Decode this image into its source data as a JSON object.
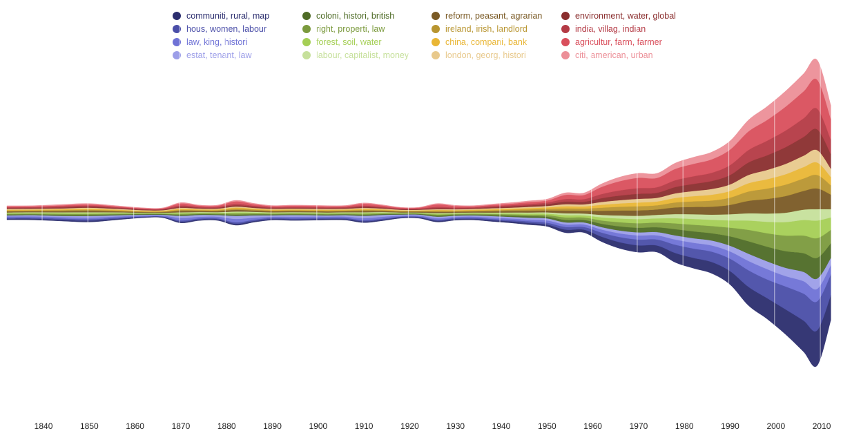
{
  "chart_data": {
    "type": "area",
    "subtype": "streamgraph",
    "title": "",
    "xlabel": "",
    "ylabel": "",
    "xlim": [
      1832,
      2013
    ],
    "x_ticks": [
      1840,
      1850,
      1860,
      1870,
      1880,
      1890,
      1900,
      1910,
      1920,
      1930,
      1940,
      1950,
      1960,
      1970,
      1980,
      1990,
      2000,
      2010
    ],
    "legend_position": "top",
    "x": [
      1832,
      1838,
      1844,
      1850,
      1856,
      1862,
      1866,
      1870,
      1874,
      1878,
      1882,
      1886,
      1890,
      1894,
      1898,
      1902,
      1906,
      1910,
      1914,
      1918,
      1922,
      1926,
      1930,
      1934,
      1938,
      1942,
      1946,
      1950,
      1954,
      1958,
      1962,
      1966,
      1970,
      1974,
      1978,
      1982,
      1986,
      1990,
      1994,
      1998,
      2002,
      2006,
      2009,
      2012
    ],
    "series": [
      {
        "name": "communiti, rural, map",
        "color": "#2b2d6e",
        "values": [
          0.5,
          0.6,
          0.6,
          0.7,
          0.5,
          0.3,
          0.3,
          0.6,
          0.5,
          0.5,
          0.7,
          0.6,
          0.5,
          0.5,
          0.5,
          0.5,
          0.5,
          0.6,
          0.5,
          0.4,
          0.4,
          0.6,
          0.5,
          0.5,
          0.6,
          0.7,
          0.8,
          0.9,
          1.5,
          1.4,
          2.4,
          3.0,
          3.3,
          3.2,
          4.5,
          5.0,
          5.5,
          6.5,
          9.0,
          10.0,
          12.0,
          15.0,
          17.0,
          12.0
        ]
      },
      {
        "name": "hous, women, labour",
        "color": "#4a4ea8",
        "values": [
          0.5,
          0.5,
          0.6,
          0.6,
          0.5,
          0.3,
          0.3,
          0.6,
          0.5,
          0.5,
          0.7,
          0.6,
          0.5,
          0.5,
          0.5,
          0.5,
          0.5,
          0.6,
          0.5,
          0.4,
          0.4,
          0.5,
          0.5,
          0.5,
          0.6,
          0.6,
          0.8,
          0.9,
          1.3,
          1.3,
          2.0,
          2.5,
          2.8,
          2.9,
          4.0,
          4.5,
          5.0,
          6.0,
          8.0,
          9.0,
          11.0,
          13.0,
          14.0,
          10.0
        ]
      },
      {
        "name": "law, king, histori",
        "color": "#6f72d6",
        "values": [
          0.6,
          0.6,
          0.7,
          0.8,
          0.6,
          0.4,
          0.4,
          1.2,
          0.8,
          0.8,
          1.6,
          1.0,
          0.6,
          0.8,
          0.8,
          0.6,
          0.7,
          1.0,
          0.9,
          0.5,
          0.5,
          0.7,
          0.6,
          0.6,
          0.7,
          0.8,
          0.9,
          1.1,
          1.2,
          1.2,
          1.5,
          1.8,
          2.0,
          2.0,
          2.5,
          2.8,
          3.0,
          3.5,
          4.5,
          5.0,
          5.0,
          6.0,
          6.0,
          4.5
        ]
      },
      {
        "name": "estat, tenant, law",
        "color": "#9c9ee8",
        "values": [
          0.5,
          0.6,
          0.6,
          0.8,
          0.6,
          0.4,
          0.4,
          1.0,
          0.9,
          0.8,
          1.5,
          1.1,
          0.7,
          0.8,
          0.7,
          0.6,
          0.7,
          1.1,
          0.9,
          0.5,
          0.5,
          0.8,
          0.6,
          0.6,
          0.7,
          0.8,
          0.9,
          1.0,
          1.0,
          1.0,
          1.2,
          1.4,
          1.5,
          1.6,
          2.0,
          2.2,
          2.4,
          2.8,
          3.5,
          3.8,
          4.0,
          4.5,
          5.0,
          3.5
        ]
      },
      {
        "name": "coloni, histori, british",
        "color": "#4e6b26",
        "values": [
          0.4,
          0.4,
          0.5,
          0.5,
          0.4,
          0.3,
          0.3,
          0.5,
          0.4,
          0.4,
          0.6,
          0.5,
          0.4,
          0.4,
          0.4,
          0.4,
          0.4,
          0.5,
          0.4,
          0.3,
          0.3,
          0.5,
          0.4,
          0.4,
          0.5,
          0.6,
          0.7,
          0.8,
          1.2,
          1.2,
          1.6,
          2.0,
          2.2,
          2.3,
          3.0,
          3.3,
          3.5,
          4.5,
          6.0,
          7.0,
          8.0,
          9.0,
          10.0,
          7.0
        ]
      },
      {
        "name": "right, properti, law",
        "color": "#7b9a3d",
        "values": [
          0.4,
          0.4,
          0.5,
          0.5,
          0.4,
          0.3,
          0.3,
          0.5,
          0.4,
          0.4,
          0.6,
          0.5,
          0.4,
          0.4,
          0.4,
          0.4,
          0.4,
          0.5,
          0.4,
          0.3,
          0.3,
          0.5,
          0.4,
          0.4,
          0.5,
          0.6,
          0.7,
          0.8,
          1.2,
          1.2,
          1.6,
          2.0,
          2.2,
          2.3,
          2.8,
          3.2,
          3.5,
          4.2,
          5.5,
          6.5,
          7.5,
          8.5,
          9.5,
          6.5
        ]
      },
      {
        "name": "forest, soil, water",
        "color": "#a5cf55",
        "values": [
          0.3,
          0.3,
          0.4,
          0.4,
          0.3,
          0.2,
          0.2,
          0.4,
          0.3,
          0.3,
          0.5,
          0.4,
          0.3,
          0.3,
          0.3,
          0.3,
          0.3,
          0.4,
          0.3,
          0.2,
          0.2,
          0.4,
          0.3,
          0.3,
          0.4,
          0.5,
          0.6,
          0.7,
          1.1,
          1.0,
          1.5,
          1.8,
          2.0,
          2.0,
          2.5,
          2.8,
          3.0,
          3.5,
          4.5,
          5.5,
          6.5,
          7.5,
          8.5,
          6.0
        ]
      },
      {
        "name": "labour, capitalist, money",
        "color": "#c6e09b",
        "values": [
          0.3,
          0.3,
          0.3,
          0.4,
          0.3,
          0.2,
          0.2,
          0.3,
          0.3,
          0.3,
          0.4,
          0.3,
          0.3,
          0.3,
          0.3,
          0.3,
          0.3,
          0.3,
          0.3,
          0.2,
          0.2,
          0.3,
          0.3,
          0.3,
          0.3,
          0.4,
          0.5,
          0.6,
          0.9,
          0.9,
          1.2,
          1.5,
          1.6,
          1.7,
          2.0,
          2.3,
          2.5,
          3.0,
          3.5,
          4.0,
          4.5,
          5.0,
          5.5,
          4.0
        ]
      },
      {
        "name": "reform, peasant, agrarian",
        "color": "#7a5a25",
        "values": [
          0.5,
          0.5,
          0.6,
          0.7,
          0.5,
          0.3,
          0.3,
          0.7,
          0.5,
          0.5,
          0.8,
          0.6,
          0.5,
          0.5,
          0.5,
          0.5,
          0.5,
          0.6,
          0.5,
          0.4,
          0.4,
          0.6,
          0.5,
          0.5,
          0.6,
          0.7,
          0.8,
          0.9,
          1.3,
          1.3,
          2.0,
          2.4,
          2.6,
          2.6,
          3.2,
          3.5,
          3.8,
          4.5,
          6.0,
          7.0,
          8.0,
          9.0,
          10.0,
          7.0
        ]
      },
      {
        "name": "ireland, irish, landlord",
        "color": "#b89530",
        "values": [
          0.4,
          0.4,
          0.5,
          0.5,
          0.4,
          0.3,
          0.3,
          0.5,
          0.4,
          0.4,
          0.6,
          0.5,
          0.4,
          0.4,
          0.4,
          0.4,
          0.4,
          0.5,
          0.4,
          0.3,
          0.3,
          0.5,
          0.4,
          0.4,
          0.5,
          0.6,
          0.7,
          0.8,
          1.1,
          1.1,
          1.5,
          1.8,
          2.0,
          2.0,
          2.4,
          2.7,
          3.0,
          3.5,
          4.5,
          5.0,
          5.5,
          6.0,
          6.5,
          4.5
        ]
      },
      {
        "name": "china, compani, bank",
        "color": "#e9b635",
        "values": [
          0.4,
          0.4,
          0.4,
          0.5,
          0.4,
          0.3,
          0.3,
          0.5,
          0.4,
          0.4,
          0.5,
          0.4,
          0.4,
          0.4,
          0.4,
          0.4,
          0.4,
          0.5,
          0.4,
          0.3,
          0.3,
          0.4,
          0.4,
          0.4,
          0.5,
          0.5,
          0.6,
          0.7,
          1.0,
          1.0,
          1.4,
          1.6,
          1.8,
          1.8,
          2.2,
          2.5,
          2.8,
          3.2,
          4.0,
          4.5,
          5.0,
          5.5,
          6.0,
          4.0
        ]
      },
      {
        "name": "london, georg, histori",
        "color": "#e8c98c",
        "values": [
          0.4,
          0.4,
          0.4,
          0.5,
          0.4,
          0.3,
          0.3,
          0.5,
          0.4,
          0.4,
          0.5,
          0.4,
          0.4,
          0.4,
          0.4,
          0.4,
          0.4,
          0.5,
          0.4,
          0.3,
          0.3,
          0.4,
          0.4,
          0.4,
          0.5,
          0.5,
          0.6,
          0.7,
          1.0,
          1.0,
          1.4,
          1.6,
          1.8,
          1.8,
          2.2,
          2.5,
          2.8,
          3.2,
          4.0,
          4.5,
          5.0,
          5.5,
          6.0,
          4.0
        ]
      },
      {
        "name": "environment, water, global",
        "color": "#8a2e2e",
        "values": [
          0.4,
          0.4,
          0.5,
          0.5,
          0.4,
          0.3,
          0.3,
          0.5,
          0.4,
          0.4,
          0.6,
          0.5,
          0.4,
          0.4,
          0.4,
          0.4,
          0.4,
          0.5,
          0.4,
          0.3,
          0.3,
          0.5,
          0.4,
          0.4,
          0.5,
          0.6,
          0.7,
          0.8,
          1.2,
          1.2,
          1.8,
          2.2,
          2.4,
          2.4,
          3.0,
          3.4,
          3.8,
          4.5,
          6.0,
          7.0,
          8.0,
          9.0,
          10.0,
          7.0
        ]
      },
      {
        "name": "india, villag, indian",
        "color": "#b43a45",
        "values": [
          0.4,
          0.4,
          0.5,
          0.5,
          0.4,
          0.3,
          0.3,
          0.6,
          0.4,
          0.4,
          0.7,
          0.5,
          0.4,
          0.4,
          0.4,
          0.4,
          0.4,
          0.6,
          0.4,
          0.3,
          0.3,
          0.6,
          0.4,
          0.4,
          0.5,
          0.6,
          0.7,
          0.8,
          1.3,
          1.3,
          2.0,
          2.5,
          2.7,
          2.7,
          3.3,
          3.7,
          4.0,
          4.8,
          6.0,
          7.0,
          8.0,
          9.0,
          10.0,
          7.0
        ]
      },
      {
        "name": "agricultur, farm, farmer",
        "color": "#d94f5c",
        "values": [
          0.4,
          0.4,
          0.5,
          0.6,
          0.4,
          0.3,
          0.3,
          1.0,
          0.6,
          0.6,
          1.2,
          0.8,
          0.5,
          0.6,
          0.6,
          0.5,
          0.5,
          0.9,
          0.7,
          0.4,
          0.4,
          1.2,
          0.8,
          0.5,
          0.6,
          0.7,
          0.9,
          1.0,
          2.0,
          2.0,
          3.5,
          4.5,
          5.0,
          4.5,
          5.5,
          6.0,
          6.5,
          7.5,
          9.0,
          10.0,
          11.5,
          13.0,
          14.0,
          10.0
        ]
      },
      {
        "name": "citi, american, urban",
        "color": "#ec8f98",
        "values": [
          0.3,
          0.3,
          0.4,
          0.4,
          0.3,
          0.2,
          0.2,
          0.4,
          0.3,
          0.3,
          0.5,
          0.4,
          0.3,
          0.3,
          0.3,
          0.3,
          0.3,
          0.4,
          0.3,
          0.2,
          0.2,
          0.4,
          0.3,
          0.3,
          0.4,
          0.5,
          0.6,
          0.7,
          1.0,
          1.0,
          1.5,
          2.0,
          2.2,
          2.2,
          2.8,
          3.2,
          3.5,
          4.2,
          5.5,
          6.5,
          7.5,
          8.5,
          9.5,
          6.5
        ]
      }
    ]
  }
}
